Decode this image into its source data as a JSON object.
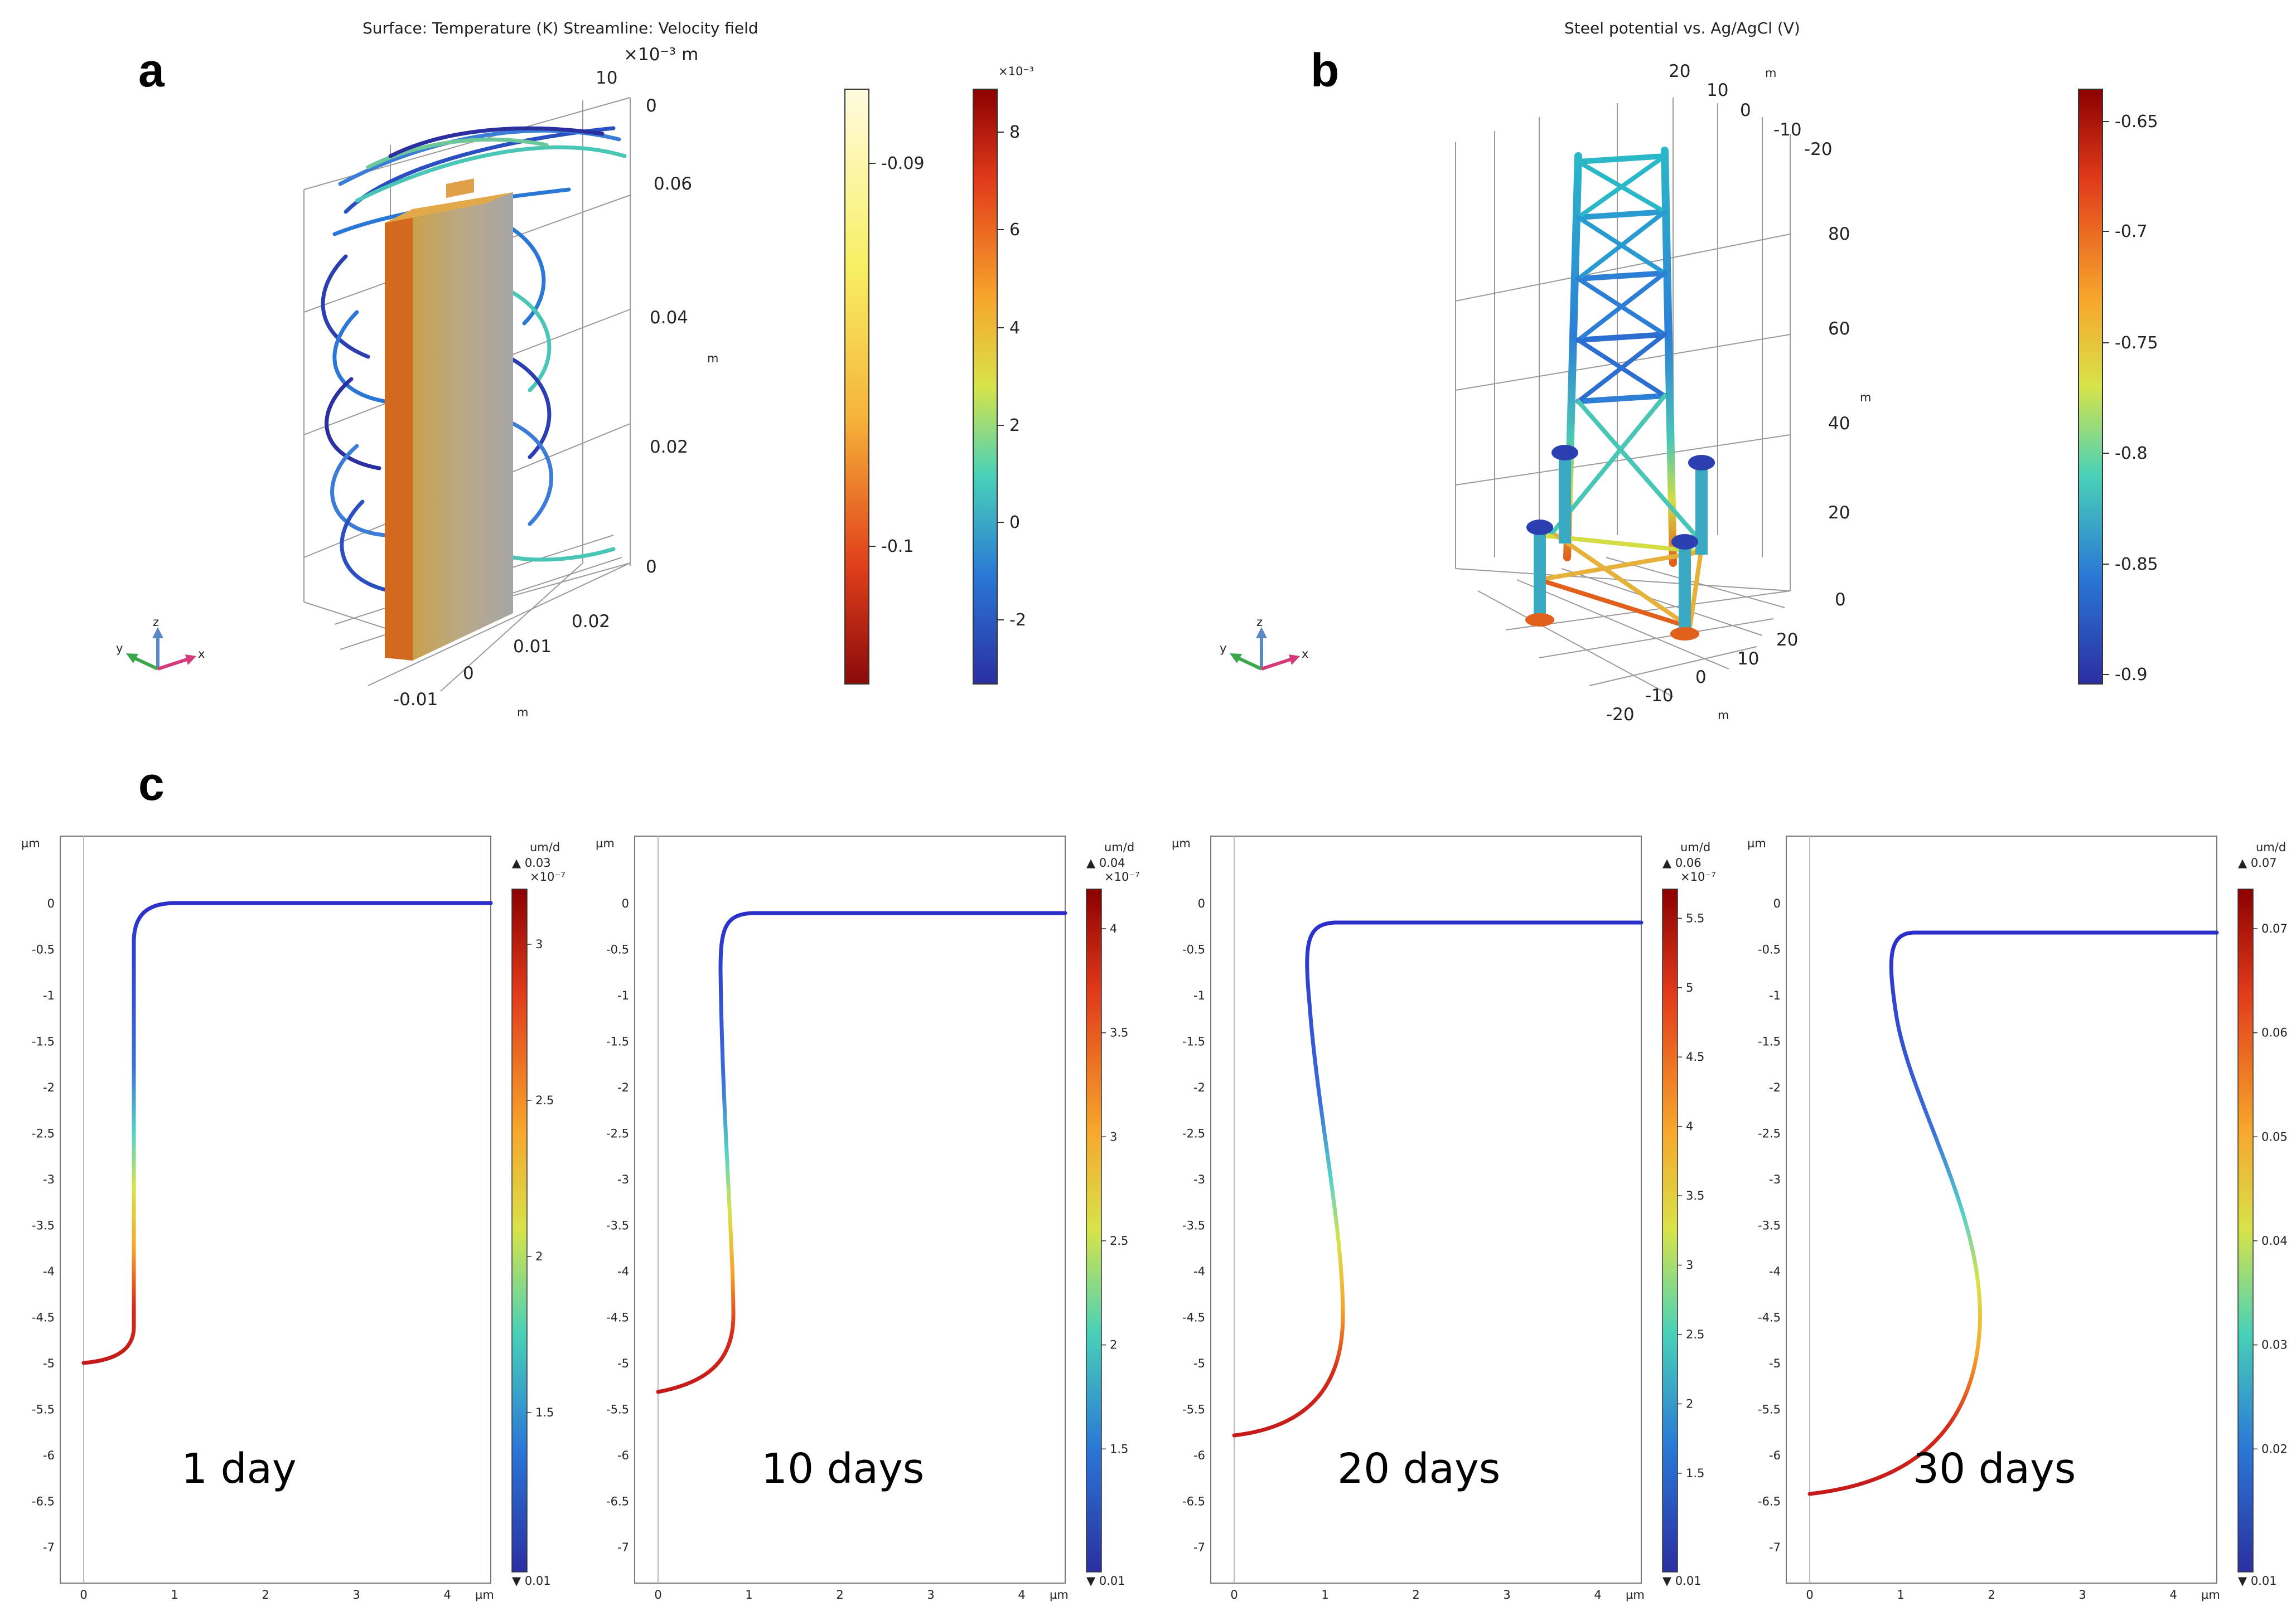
{
  "panel_a": {
    "letter": "a",
    "title": "Surface: Temperature (K)  Streamline: Velocity field",
    "top_axis_label": "×10⁻³ m",
    "z_ticks": [
      "0.06",
      "0.04",
      "0.02",
      "0"
    ],
    "z_unit": "m",
    "y_ticks": [
      "10",
      "0"
    ],
    "x_ticks": [
      "0.02",
      "0.01",
      "0",
      "-0.01"
    ],
    "x_unit": "m",
    "triad": {
      "x": "x",
      "y": "y",
      "z": "z"
    },
    "colorbar_temperature": {
      "ticks": [
        "-0.09",
        "-0.1"
      ],
      "colors": [
        "#fffbe0",
        "#f7ef62",
        "#f6b43a",
        "#e0401b",
        "#8b0a0a"
      ]
    },
    "colorbar_velocity": {
      "exponent": "×10⁻³",
      "ticks": [
        "8",
        "6",
        "4",
        "2",
        "0",
        "-2"
      ],
      "colors": [
        "#8b0000",
        "#e03a1a",
        "#f7a52c",
        "#d7e34a",
        "#49d1b8",
        "#2a77d6",
        "#2b2fa0"
      ]
    }
  },
  "panel_b": {
    "letter": "b",
    "title": "Steel potential vs. Ag/AgCl (V)",
    "top_ticks": [
      "20",
      "10",
      "0",
      "-10",
      "-20"
    ],
    "top_unit": "m",
    "z_ticks": [
      "80",
      "60",
      "40",
      "20",
      "0"
    ],
    "z_unit": "m",
    "x_ticks": [
      "20",
      "10",
      "0",
      "-10",
      "-20"
    ],
    "x_unit": "m",
    "triad": {
      "x": "x",
      "y": "y",
      "z": "z"
    },
    "colorbar": {
      "ticks": [
        "-0.65",
        "-0.7",
        "-0.75",
        "-0.8",
        "-0.85",
        "-0.9"
      ],
      "colors": [
        "#8b0000",
        "#e03a1a",
        "#f7a52c",
        "#d7e34a",
        "#49d1b8",
        "#2a77d6",
        "#2b2fa0"
      ]
    }
  },
  "panel_c": {
    "letter": "c",
    "axis_unit": "µm",
    "y_ticks": [
      "0",
      "-0.5",
      "-1",
      "-1.5",
      "-2",
      "-2.5",
      "-3",
      "-3.5",
      "-4",
      "-4.5",
      "-5",
      "-5.5",
      "-6",
      "-6.5",
      "-7"
    ],
    "x_ticks": [
      "0",
      "1",
      "2",
      "3",
      "4"
    ],
    "colorbar_unit": "um/d",
    "subplots": [
      {
        "label": "1 day",
        "max_label": "▲ 0.03",
        "exponent": "×10⁻⁷",
        "cb_ticks": [
          "3",
          "2.5",
          "2",
          "1.5"
        ],
        "min_label": "▼ 0.01"
      },
      {
        "label": "10 days",
        "max_label": "▲ 0.04",
        "exponent": "×10⁻⁷",
        "cb_ticks": [
          "4",
          "3.5",
          "3",
          "2.5",
          "2",
          "1.5"
        ],
        "min_label": "▼ 0.01"
      },
      {
        "label": "20 days",
        "max_label": "▲ 0.06",
        "exponent": "×10⁻⁷",
        "cb_ticks": [
          "5.5",
          "5",
          "4.5",
          "4",
          "3.5",
          "3",
          "2.5",
          "2",
          "1.5"
        ],
        "min_label": "▼ 0.01"
      },
      {
        "label": "30 days",
        "max_label": "▲ 0.07",
        "exponent": "",
        "cb_ticks": [
          "0.07",
          "0.06",
          "0.05",
          "0.04",
          "0.03",
          "0.02"
        ],
        "min_label": "▼ 0.01"
      }
    ]
  }
}
